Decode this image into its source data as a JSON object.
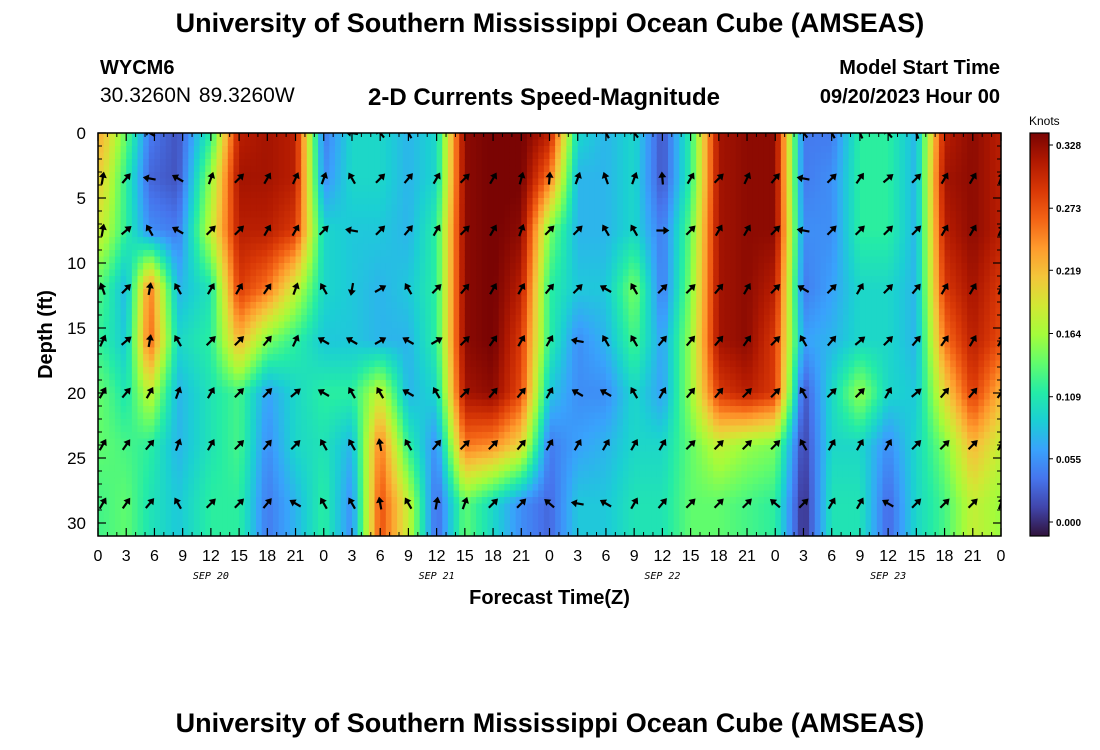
{
  "page": {
    "title": "University of Southern Mississippi Ocean Cube (AMSEAS)",
    "footer_title": "University of Southern Mississippi Ocean Cube (AMSEAS)",
    "station": "WYCM6",
    "coords": "30.3260N  89.3260W",
    "product": "2-D Currents Speed-Magnitude",
    "model_start_label": "Model Start Time",
    "model_start_value": "09/20/2023 Hour 00"
  },
  "chart_data": {
    "type": "heatmap",
    "title": "2-D Currents Speed-Magnitude",
    "xlabel": "Forecast Time(Z)",
    "ylabel": "Depth (ft)",
    "x_tick_labels": [
      "0",
      "3",
      "6",
      "9",
      "12",
      "15",
      "18",
      "21",
      "0",
      "3",
      "6",
      "9",
      "12",
      "15",
      "18",
      "21",
      "0",
      "3",
      "6",
      "9",
      "12",
      "15",
      "18",
      "21",
      "0",
      "3",
      "6",
      "9",
      "12",
      "15",
      "18",
      "21",
      "0"
    ],
    "x_hours": [
      0,
      3,
      6,
      9,
      12,
      15,
      18,
      21,
      24,
      27,
      30,
      33,
      36,
      39,
      42,
      45,
      48,
      51,
      54,
      57,
      60,
      63,
      66,
      69,
      72,
      75,
      78,
      81,
      84,
      87,
      90,
      93,
      96
    ],
    "date_labels": [
      {
        "text": "SEP 20",
        "hour": 12
      },
      {
        "text": "SEP 21",
        "hour": 36
      },
      {
        "text": "SEP 22",
        "hour": 60
      },
      {
        "text": "SEP 23",
        "hour": 84
      }
    ],
    "xlim": [
      0,
      96
    ],
    "ylim": [
      0,
      31
    ],
    "y_ticks": [
      0,
      5,
      10,
      15,
      20,
      25,
      30
    ],
    "colorbar": {
      "units": "Knots",
      "ticks": [
        0.0,
        0.055,
        0.109,
        0.164,
        0.219,
        0.273,
        0.328
      ],
      "tick_labels": [
        "0.000",
        "0.055",
        "0.109",
        "0.164",
        "0.219",
        "0.273",
        "0.328"
      ],
      "colors": [
        "#30123b",
        "#4145ab",
        "#4675ed",
        "#39a2fc",
        "#1bcfd4",
        "#24eca6",
        "#61fc6c",
        "#a4fc3b",
        "#d1e834",
        "#f3c63a",
        "#fe9b2d",
        "#f36315",
        "#d93806",
        "#b11901",
        "#7a0403"
      ]
    },
    "depths": [
      0,
      3.5,
      7.5,
      12,
      16,
      20,
      24,
      28.5
    ],
    "times": [
      0.5,
      3,
      5.5,
      8.5,
      12,
      15,
      18,
      21,
      24,
      27,
      30,
      33,
      36,
      39,
      42,
      45,
      48,
      51,
      54,
      57,
      60,
      63,
      66,
      69,
      72,
      75,
      78,
      81,
      84,
      87,
      90,
      93,
      96
    ],
    "speed": [
      [
        0.22,
        0.14,
        0.05,
        0.03,
        0.12,
        0.3,
        0.31,
        0.3,
        0.05,
        0.1,
        0.1,
        0.08,
        0.1,
        0.32,
        0.33,
        0.33,
        0.3,
        0.1,
        0.08,
        0.1,
        0.03,
        0.12,
        0.31,
        0.32,
        0.32,
        0.05,
        0.05,
        0.12,
        0.12,
        0.08,
        0.3,
        0.32,
        0.3
      ],
      [
        0.2,
        0.12,
        0.04,
        0.03,
        0.16,
        0.31,
        0.31,
        0.3,
        0.06,
        0.1,
        0.1,
        0.08,
        0.1,
        0.32,
        0.33,
        0.33,
        0.25,
        0.08,
        0.08,
        0.1,
        0.03,
        0.12,
        0.31,
        0.32,
        0.32,
        0.05,
        0.06,
        0.12,
        0.12,
        0.08,
        0.31,
        0.32,
        0.3
      ],
      [
        0.18,
        0.12,
        0.06,
        0.05,
        0.18,
        0.3,
        0.3,
        0.28,
        0.1,
        0.09,
        0.09,
        0.08,
        0.12,
        0.32,
        0.33,
        0.32,
        0.15,
        0.08,
        0.08,
        0.1,
        0.05,
        0.14,
        0.31,
        0.32,
        0.32,
        0.06,
        0.06,
        0.12,
        0.12,
        0.08,
        0.3,
        0.32,
        0.3
      ],
      [
        0.13,
        0.08,
        0.25,
        0.08,
        0.11,
        0.28,
        0.25,
        0.18,
        0.1,
        0.09,
        0.08,
        0.09,
        0.12,
        0.32,
        0.33,
        0.3,
        0.12,
        0.09,
        0.09,
        0.15,
        0.05,
        0.15,
        0.31,
        0.32,
        0.3,
        0.05,
        0.07,
        0.1,
        0.1,
        0.08,
        0.28,
        0.31,
        0.28
      ],
      [
        0.12,
        0.09,
        0.26,
        0.1,
        0.12,
        0.22,
        0.15,
        0.12,
        0.09,
        0.09,
        0.08,
        0.08,
        0.12,
        0.32,
        0.33,
        0.28,
        0.12,
        0.06,
        0.08,
        0.13,
        0.07,
        0.16,
        0.31,
        0.32,
        0.28,
        0.07,
        0.08,
        0.1,
        0.1,
        0.08,
        0.25,
        0.3,
        0.27
      ],
      [
        0.14,
        0.11,
        0.18,
        0.08,
        0.11,
        0.13,
        0.07,
        0.1,
        0.12,
        0.12,
        0.18,
        0.08,
        0.1,
        0.31,
        0.32,
        0.27,
        0.09,
        0.06,
        0.06,
        0.1,
        0.07,
        0.16,
        0.28,
        0.3,
        0.28,
        0.03,
        0.1,
        0.16,
        0.1,
        0.09,
        0.2,
        0.28,
        0.22
      ],
      [
        0.14,
        0.13,
        0.12,
        0.08,
        0.11,
        0.13,
        0.06,
        0.1,
        0.11,
        0.08,
        0.25,
        0.12,
        0.06,
        0.25,
        0.24,
        0.2,
        0.05,
        0.07,
        0.08,
        0.1,
        0.1,
        0.14,
        0.18,
        0.16,
        0.15,
        0.02,
        0.1,
        0.1,
        0.06,
        0.1,
        0.15,
        0.22,
        0.18
      ],
      [
        0.13,
        0.14,
        0.11,
        0.09,
        0.12,
        0.12,
        0.05,
        0.08,
        0.12,
        0.06,
        0.27,
        0.18,
        0.04,
        0.14,
        0.1,
        0.06,
        0.04,
        0.09,
        0.09,
        0.11,
        0.11,
        0.14,
        0.14,
        0.13,
        0.12,
        0.01,
        0.11,
        0.11,
        0.04,
        0.1,
        0.13,
        0.18,
        0.16
      ]
    ],
    "vector_depths": [
      0,
      3.5,
      7.5,
      12,
      16,
      20,
      24,
      28.5
    ],
    "vector_times": [
      0.5,
      3,
      5.5,
      8.5,
      12,
      15,
      18,
      21,
      24,
      27,
      30,
      33,
      36,
      39,
      42,
      45,
      48,
      51,
      54,
      57,
      60,
      63,
      66,
      69,
      72,
      75,
      78,
      81,
      84,
      87,
      90,
      93,
      96
    ],
    "directions_deg": [
      [
        null,
        null,
        300,
        null,
        null,
        null,
        null,
        null,
        null,
        280,
        320,
        330,
        null,
        null,
        null,
        null,
        null,
        null,
        330,
        320,
        null,
        null,
        null,
        null,
        null,
        320,
        330,
        335,
        320,
        340,
        null,
        null,
        null
      ],
      [
        10,
        40,
        280,
        300,
        20,
        45,
        30,
        25,
        20,
        330,
        45,
        40,
        30,
        45,
        30,
        15,
        5,
        20,
        340,
        20,
        355,
        30,
        45,
        25,
        40,
        280,
        45,
        35,
        50,
        45,
        30,
        30,
        20
      ],
      [
        10,
        50,
        330,
        300,
        45,
        45,
        30,
        30,
        45,
        280,
        45,
        40,
        30,
        45,
        30,
        20,
        45,
        45,
        330,
        330,
        90,
        45,
        30,
        30,
        45,
        280,
        45,
        45,
        45,
        45,
        30,
        30,
        25
      ],
      [
        340,
        45,
        10,
        330,
        30,
        30,
        35,
        20,
        330,
        190,
        60,
        330,
        45,
        40,
        30,
        30,
        40,
        45,
        300,
        330,
        45,
        45,
        40,
        30,
        45,
        300,
        45,
        30,
        45,
        40,
        30,
        30,
        25
      ],
      [
        25,
        50,
        10,
        330,
        45,
        45,
        40,
        25,
        300,
        300,
        60,
        300,
        60,
        45,
        35,
        30,
        30,
        280,
        330,
        330,
        40,
        40,
        40,
        35,
        45,
        330,
        40,
        50,
        45,
        40,
        35,
        30,
        30
      ],
      [
        30,
        40,
        30,
        20,
        30,
        45,
        45,
        50,
        300,
        330,
        330,
        300,
        330,
        45,
        40,
        40,
        30,
        300,
        300,
        330,
        30,
        40,
        40,
        45,
        45,
        330,
        45,
        45,
        30,
        50,
        40,
        40,
        35
      ],
      [
        30,
        35,
        40,
        20,
        30,
        45,
        40,
        45,
        330,
        330,
        350,
        330,
        40,
        45,
        45,
        40,
        30,
        30,
        30,
        30,
        30,
        45,
        45,
        45,
        45,
        330,
        30,
        30,
        30,
        45,
        45,
        45,
        30
      ],
      [
        30,
        35,
        40,
        330,
        45,
        45,
        40,
        300,
        330,
        330,
        350,
        330,
        10,
        20,
        45,
        45,
        310,
        280,
        300,
        30,
        40,
        45,
        45,
        45,
        310,
        45,
        30,
        30,
        300,
        45,
        45,
        45,
        20
      ]
    ]
  }
}
